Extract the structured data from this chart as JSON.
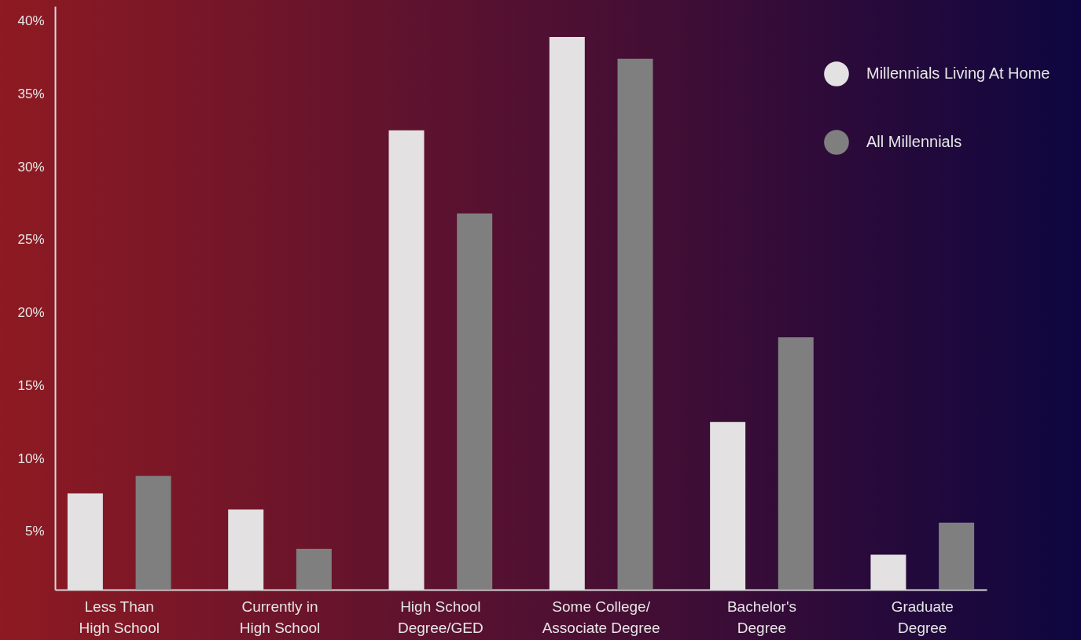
{
  "chart_data": {
    "type": "bar",
    "categories": [
      "Less Than\nHigh School",
      "Currently in\nHigh School",
      "High School\nDegree/GED",
      "Some College/\nAssociate Degree",
      "Bachelor's\nDegree",
      "Graduate\nDegree"
    ],
    "series": [
      {
        "name": "Millennials Living At Home",
        "color": "#e3e1e2",
        "values": [
          7.6,
          6.5,
          32.5,
          38.9,
          12.5,
          3.4
        ]
      },
      {
        "name": "All Millennials",
        "color": "#7f7f7f",
        "values": [
          8.8,
          3.8,
          26.8,
          37.4,
          18.3,
          5.6
        ]
      }
    ],
    "ylim": [
      1,
      41
    ],
    "yticks": [
      {
        "value": 5,
        "label": "5%"
      },
      {
        "value": 10,
        "label": "10%"
      },
      {
        "value": 15,
        "label": "15%"
      },
      {
        "value": 20,
        "label": "20%"
      },
      {
        "value": 25,
        "label": "25%"
      },
      {
        "value": 30,
        "label": "30%"
      },
      {
        "value": 35,
        "label": "35%"
      },
      {
        "value": 40,
        "label": "40%"
      }
    ],
    "grid": false,
    "legend": "top right"
  }
}
